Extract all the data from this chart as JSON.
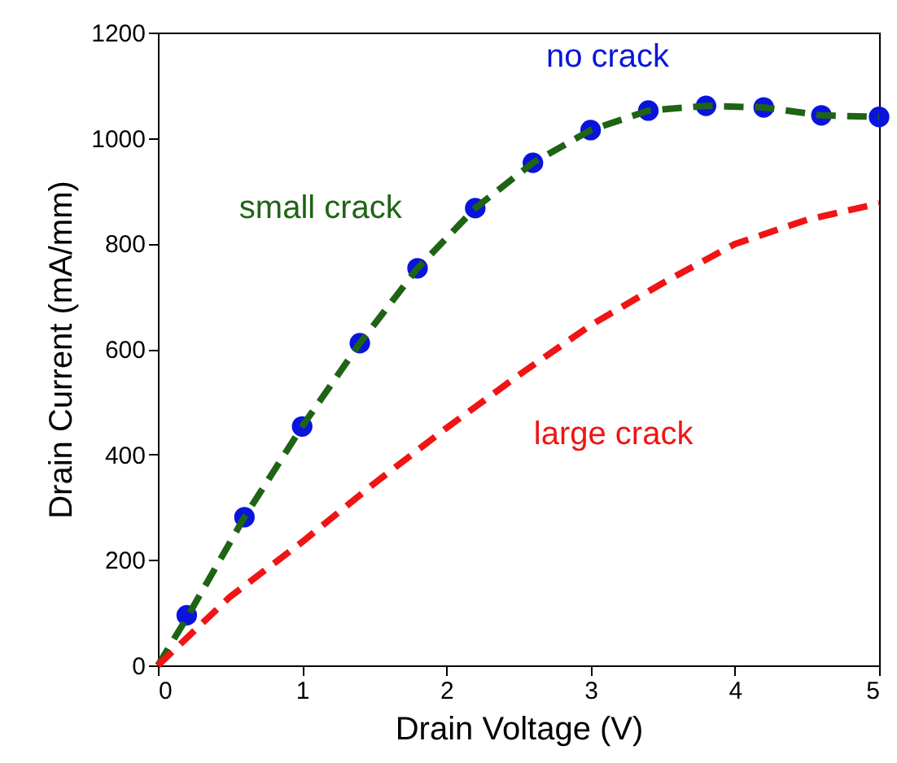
{
  "chart_data": {
    "type": "line",
    "xlabel": "Drain Voltage (V)",
    "ylabel": "Drain Current (mA/mm)",
    "xlim": [
      0,
      5
    ],
    "xticks": [
      0,
      1,
      2,
      3,
      4,
      5
    ],
    "ylim": [
      0,
      1200
    ],
    "yticks": [
      0,
      200,
      400,
      600,
      800,
      1000,
      1200
    ],
    "grid": false,
    "legend": false,
    "series": [
      {
        "type": "scatter",
        "name": "no crack",
        "marker": "circle",
        "color": "#0a14dc",
        "x": [
          0.2,
          0.6,
          1.0,
          1.4,
          1.8,
          2.2,
          2.6,
          3.0,
          3.4,
          3.8,
          4.2,
          4.6,
          5.0
        ],
        "values": [
          95,
          281,
          453,
          611,
          753,
          867,
          953,
          1015,
          1052,
          1061,
          1058,
          1043,
          1040
        ]
      },
      {
        "type": "line",
        "name": "small crack",
        "line_style": "dashed",
        "color": "#1e6414",
        "x": [
          0,
          0.2,
          0.6,
          1.0,
          1.4,
          1.8,
          2.2,
          2.6,
          3.0,
          3.4,
          3.8,
          4.2,
          4.6,
          5.0
        ],
        "values": [
          0,
          90,
          281,
          453,
          611,
          753,
          867,
          953,
          1015,
          1052,
          1061,
          1058,
          1043,
          1040
        ]
      },
      {
        "type": "line",
        "name": "large crack",
        "line_style": "dashed",
        "color": "#f01414",
        "x": [
          0,
          0.5,
          1,
          1.5,
          2,
          2.5,
          3,
          3.5,
          4,
          4.5,
          5
        ],
        "values": [
          0,
          130,
          234,
          345,
          450,
          550,
          645,
          725,
          799,
          845,
          876
        ]
      }
    ]
  }
}
